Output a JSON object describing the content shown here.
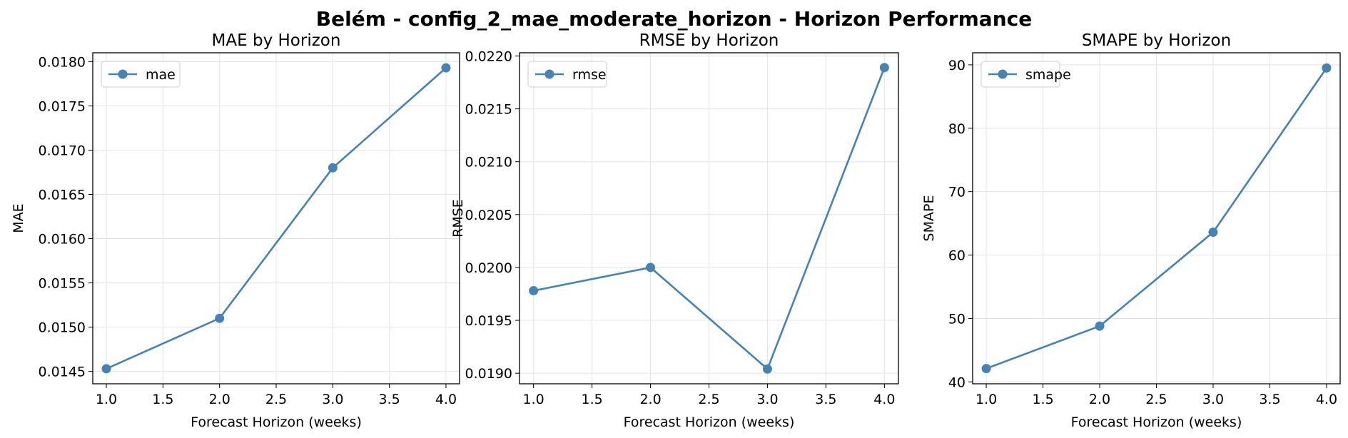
{
  "figure": {
    "title": "Belém - config_2_mae_moderate_horizon - Horizon Performance"
  },
  "chart_data": [
    {
      "type": "line",
      "title": "MAE by Horizon",
      "xlabel": "Forecast Horizon (weeks)",
      "ylabel": "MAE",
      "x": [
        1.0,
        2.0,
        3.0,
        4.0
      ],
      "series": [
        {
          "name": "mae",
          "values": [
            0.01453,
            0.0151,
            0.0168,
            0.01793
          ],
          "color": "#4682b4"
        }
      ],
      "xlim": [
        0.88,
        4.12
      ],
      "ylim": [
        0.01436,
        0.0181
      ],
      "xticks": [
        "1.0",
        "1.5",
        "2.0",
        "2.5",
        "3.0",
        "3.5",
        "4.0"
      ],
      "xtick_values": [
        1.0,
        1.5,
        2.0,
        2.5,
        3.0,
        3.5,
        4.0
      ],
      "yticks": [
        "0.0145",
        "0.0150",
        "0.0155",
        "0.0160",
        "0.0165",
        "0.0170",
        "0.0175",
        "0.0180"
      ],
      "ytick_values": [
        0.0145,
        0.015,
        0.0155,
        0.016,
        0.0165,
        0.017,
        0.0175,
        0.018
      ],
      "grid": true,
      "legend": "top-left"
    },
    {
      "type": "line",
      "title": "RMSE by Horizon",
      "xlabel": "Forecast Horizon (weeks)",
      "ylabel": "RMSE",
      "x": [
        1.0,
        2.0,
        3.0,
        4.0
      ],
      "series": [
        {
          "name": "rmse",
          "values": [
            0.01978,
            0.02,
            0.01904,
            0.02189
          ],
          "color": "#4682b4"
        }
      ],
      "xlim": [
        0.88,
        4.12
      ],
      "ylim": [
        0.0189,
        0.02203
      ],
      "xticks": [
        "1.0",
        "1.5",
        "2.0",
        "2.5",
        "3.0",
        "3.5",
        "4.0"
      ],
      "xtick_values": [
        1.0,
        1.5,
        2.0,
        2.5,
        3.0,
        3.5,
        4.0
      ],
      "yticks": [
        "0.0190",
        "0.0195",
        "0.0200",
        "0.0205",
        "0.0210",
        "0.0215",
        "0.0220"
      ],
      "ytick_values": [
        0.019,
        0.0195,
        0.02,
        0.0205,
        0.021,
        0.0215,
        0.022
      ],
      "grid": true,
      "legend": "top-left"
    },
    {
      "type": "line",
      "title": "SMAPE by Horizon",
      "xlabel": "Forecast Horizon (weeks)",
      "ylabel": "SMAPE",
      "x": [
        1.0,
        2.0,
        3.0,
        4.0
      ],
      "series": [
        {
          "name": "smape",
          "values": [
            42.1,
            48.8,
            63.6,
            89.5
          ],
          "color": "#4682b4"
        }
      ],
      "xlim": [
        0.88,
        4.12
      ],
      "ylim": [
        39.7,
        91.9
      ],
      "xticks": [
        "1.0",
        "1.5",
        "2.0",
        "2.5",
        "3.0",
        "3.5",
        "4.0"
      ],
      "xtick_values": [
        1.0,
        1.5,
        2.0,
        2.5,
        3.0,
        3.5,
        4.0
      ],
      "yticks": [
        "40",
        "50",
        "60",
        "70",
        "80",
        "90"
      ],
      "ytick_values": [
        40,
        50,
        60,
        70,
        80,
        90
      ],
      "grid": true,
      "legend": "top-left"
    }
  ]
}
